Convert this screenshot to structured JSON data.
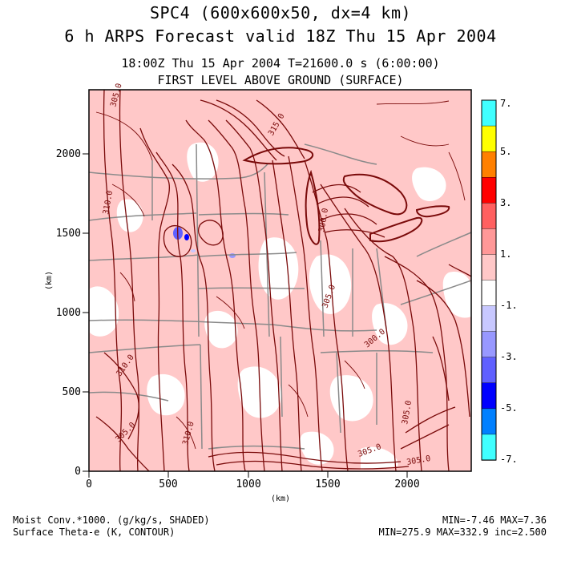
{
  "header": {
    "line1": "SPC4 (600x600x50, dx=4 km)",
    "line2": "6 h ARPS Forecast valid 18Z Thu 15 Apr 2004",
    "time_line": "18:00Z Thu 15 Apr 2004      T=21600.0 s (6:00:00)",
    "level_line": "FIRST LEVEL ABOVE GROUND (SURFACE)"
  },
  "axes": {
    "x_label": "(km)",
    "y_label": "(km)",
    "x_ticks": [
      "0",
      "500",
      "1000",
      "1500",
      "2000"
    ],
    "y_ticks": [
      "0",
      "500",
      "1000",
      "1500",
      "2000"
    ]
  },
  "colorbar": {
    "labels": [
      "7.",
      "5.",
      "3.",
      "1.",
      "-1.",
      "-3.",
      "-5.",
      "-7."
    ],
    "colors": [
      "#40ffff",
      "#ffff00",
      "#ff8000",
      "#ff0000",
      "#ff6060",
      "#ff9898",
      "#ffc8c8",
      "#ffffff",
      "#c8c8ff",
      "#9898ff",
      "#6060ff",
      "#0000ff",
      "#0080ff",
      "#40ffff"
    ]
  },
  "contour_labels": [
    "305.0",
    "310.0",
    "315.0",
    "300.0",
    "305.0",
    "300.0",
    "305.0",
    "310.0",
    "305.0",
    "310.0",
    "305.0",
    "305.0"
  ],
  "footer": {
    "shaded_field": "Moist Conv.*1000. (g/kg/s, SHADED)",
    "contour_field": "Surface Theta-e (K, CONTOUR)",
    "shaded_stats": "MIN=-7.46 MAX=7.36",
    "contour_stats": "MIN=275.9 MAX=332.9 inc=2.500"
  },
  "colors": {
    "contour": "#7a0a0a",
    "pink_fill": "#ffc8c8",
    "boundary": "#8a8a8a"
  }
}
